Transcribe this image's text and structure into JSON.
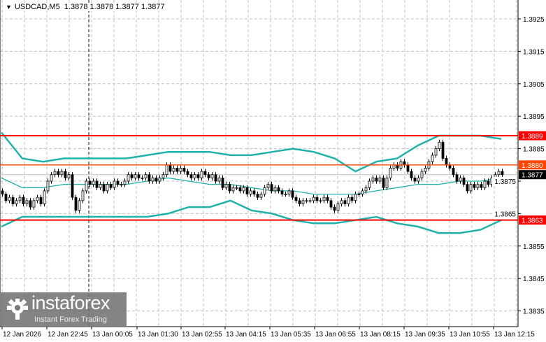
{
  "header": {
    "symbol": "USDCAD,M5",
    "ohlc": "1.3878 1.3878 1.3877 1.3877"
  },
  "logo": {
    "name": "instaforex",
    "tagline": "Instant Forex Trading"
  },
  "colors": {
    "level": "#ff0000",
    "resistance_near": "#ff4500",
    "bands": "#20b2aa",
    "current_price_bg": "#000000",
    "grid": "#c0c0c0"
  },
  "chart_data": {
    "type": "candlestick",
    "symbol": "USDCAD",
    "timeframe": "M5",
    "ylim": [
      1.383,
      1.393
    ],
    "y_ticks": [
      "1.3925",
      "1.3915",
      "1.3905",
      "1.3895",
      "1.3885",
      "1.3875",
      "1.3865",
      "1.3855",
      "1.3845",
      "1.3835"
    ],
    "x_ticks": [
      "12 Jan 2026",
      "12 Jan 22:45",
      "13 Jan 00:05",
      "13 Jan 01:30",
      "13 Jan 02:55",
      "13 Jan 04:15",
      "13 Jan 05:35",
      "13 Jan 06:55",
      "13 Jan 08:15",
      "13 Jan 09:35",
      "13 Jan 10:55",
      "13 Jan 12:15"
    ],
    "grid": true,
    "close": [
      1.3871,
      1.3869,
      1.387,
      1.3868,
      1.3869,
      1.387,
      1.3868,
      1.3869,
      1.3867,
      1.3869,
      1.387,
      1.3868,
      1.3872,
      1.3875,
      1.3877,
      1.3878,
      1.3877,
      1.3878,
      1.3876,
      1.3877,
      1.387,
      1.3866,
      1.3869,
      1.3872,
      1.3875,
      1.3874,
      1.3875,
      1.3873,
      1.3874,
      1.3872,
      1.3874,
      1.3873,
      1.3875,
      1.3874,
      1.3874,
      1.3875,
      1.3877,
      1.3876,
      1.3877,
      1.3876,
      1.3876,
      1.3877,
      1.3875,
      1.3876,
      1.3875,
      1.3876,
      1.3877,
      1.388,
      1.3878,
      1.3879,
      1.3878,
      1.3879,
      1.3878,
      1.3877,
      1.3876,
      1.3877,
      1.3876,
      1.3878,
      1.3877,
      1.3876,
      1.3877,
      1.3875,
      1.3876,
      1.3873,
      1.3874,
      1.3872,
      1.3873,
      1.3873,
      1.3872,
      1.3873,
      1.3871,
      1.3872,
      1.3871,
      1.387,
      1.3871,
      1.3873,
      1.3874,
      1.3872,
      1.3873,
      1.3872,
      1.3871,
      1.3871,
      1.3872,
      1.387,
      1.3869,
      1.3868,
      1.3869,
      1.3869,
      1.3869,
      1.387,
      1.3869,
      1.3869,
      1.387,
      1.3869,
      1.3867,
      1.3866,
      1.3868,
      1.3869,
      1.3868,
      1.387,
      1.3869,
      1.3871,
      1.3871,
      1.3872,
      1.3873,
      1.3875,
      1.3876,
      1.3875,
      1.3876,
      1.3873,
      1.3876,
      1.3879,
      1.388,
      1.3879,
      1.3881,
      1.388,
      1.3878,
      1.3876,
      1.3875,
      1.3876,
      1.3878,
      1.3879,
      1.3881,
      1.3883,
      1.3885,
      1.3887,
      1.3882,
      1.388,
      1.3879,
      1.3877,
      1.3875,
      1.3876,
      1.3874,
      1.3872,
      1.3874,
      1.3873,
      1.3874,
      1.3873,
      1.3875,
      1.3874,
      1.3876,
      1.3877,
      1.3878,
      1.3877
    ],
    "bollinger_upper": [
      1.389,
      1.3882,
      1.3881,
      1.3882,
      1.3882,
      1.3882,
      1.3882,
      1.3883,
      1.3884,
      1.3884,
      1.3884,
      1.3883,
      1.3883,
      1.3884,
      1.3885,
      1.3884,
      1.3882,
      1.3878,
      1.3881,
      1.3882,
      1.3886,
      1.3889,
      1.3889,
      1.3889,
      1.3888
    ],
    "bollinger_middle": [
      1.3876,
      1.3873,
      1.3873,
      1.3874,
      1.3874,
      1.3874,
      1.3874,
      1.3875,
      1.3876,
      1.3875,
      1.3874,
      1.3874,
      1.3873,
      1.3872,
      1.3872,
      1.3871,
      1.3871,
      1.3871,
      1.3872,
      1.3873,
      1.3874,
      1.3874,
      1.3875,
      1.3875,
      1.3876
    ],
    "bollinger_lower": [
      1.3861,
      1.3864,
      1.3864,
      1.3864,
      1.3864,
      1.3864,
      1.3864,
      1.3864,
      1.3865,
      1.3867,
      1.3867,
      1.3869,
      1.3866,
      1.3865,
      1.3863,
      1.3862,
      1.3862,
      1.3863,
      1.3864,
      1.3862,
      1.3861,
      1.3859,
      1.3859,
      1.386,
      1.3863
    ],
    "levels": [
      {
        "price": "1.3889",
        "color": "#ff0000"
      },
      {
        "price": "1.3880",
        "color": "#ff4500"
      },
      {
        "price": "1.3863",
        "color": "#ff0000"
      }
    ],
    "current_price": "1.3877"
  }
}
